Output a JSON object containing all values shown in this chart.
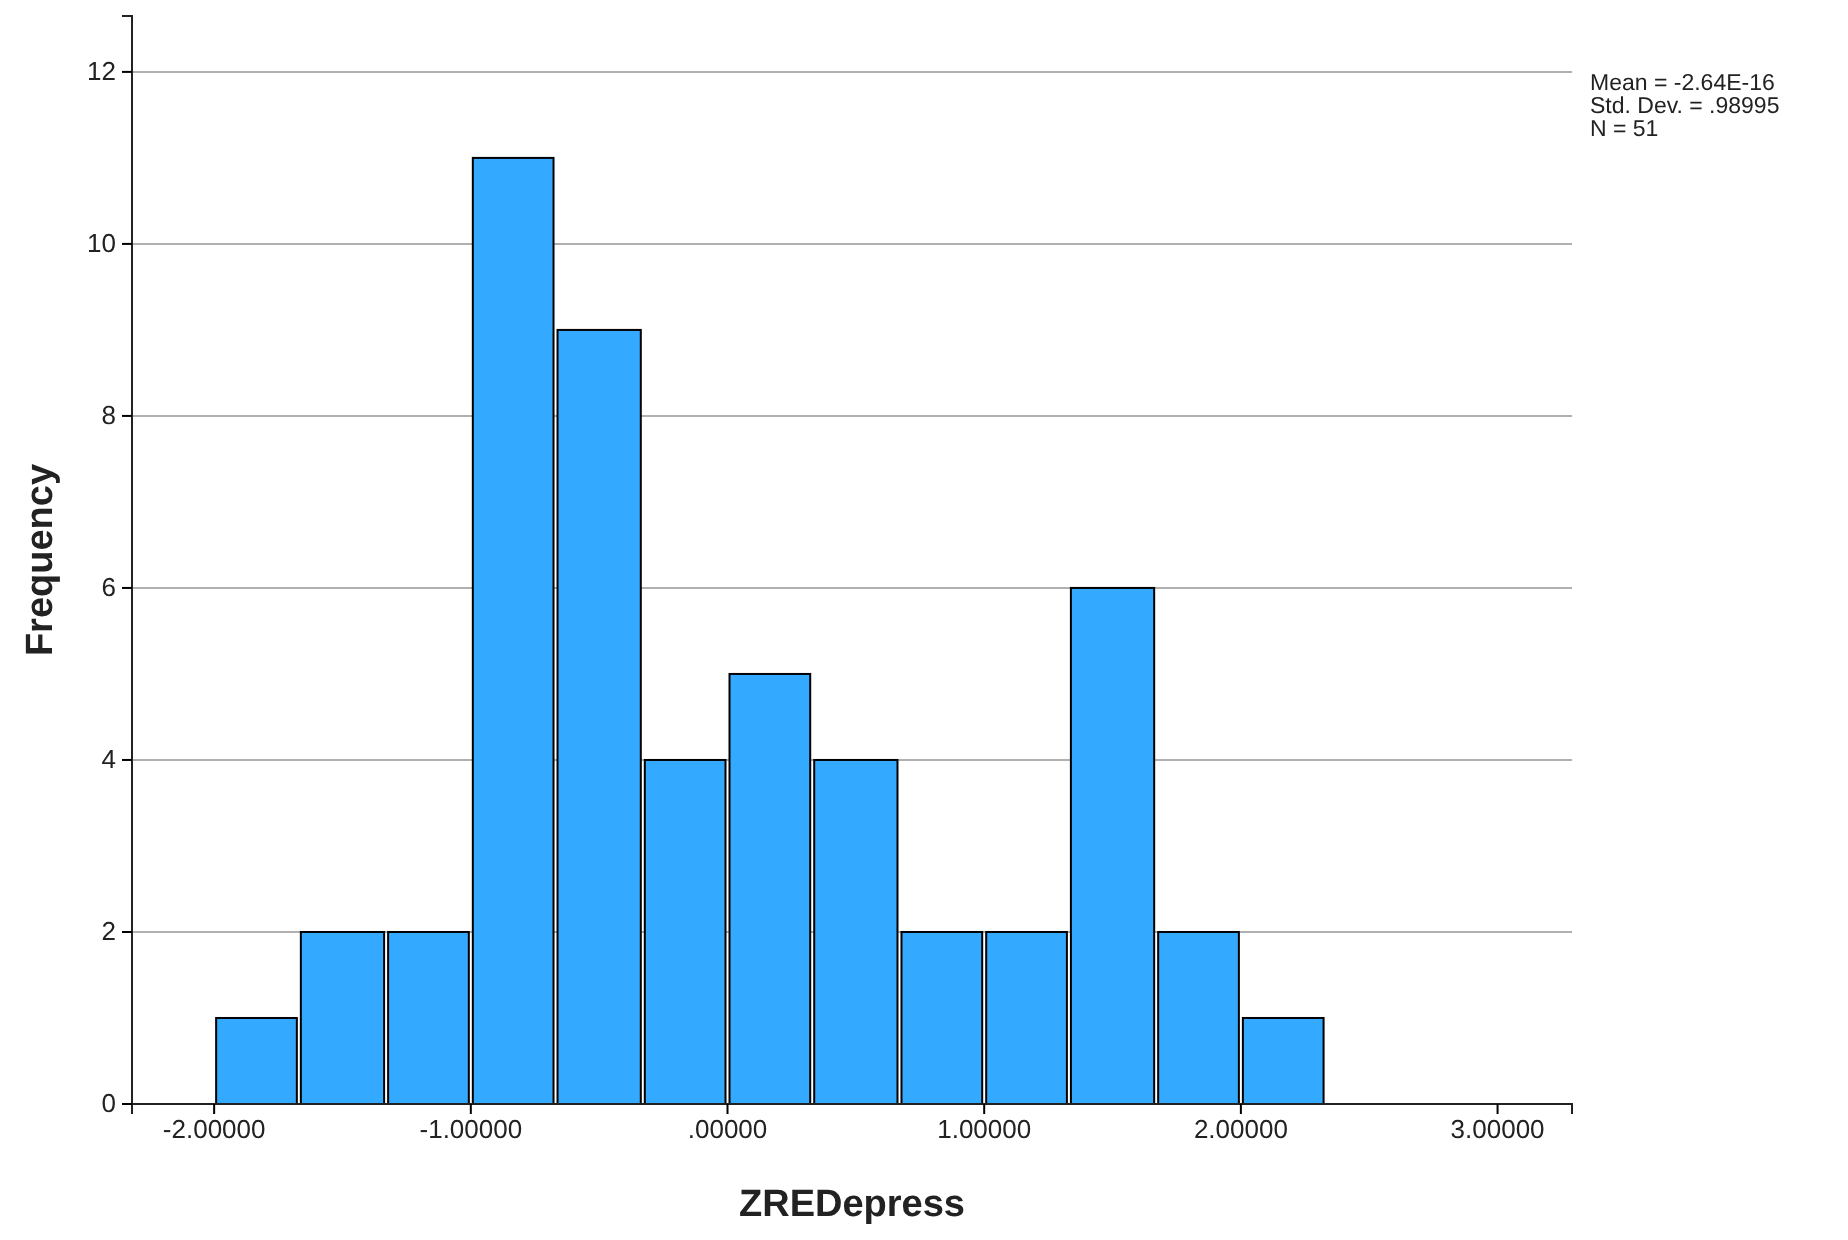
{
  "chart_data": {
    "type": "histogram",
    "xlabel": "ZREDepress",
    "ylabel": "Frequency",
    "bins": [
      -2,
      -1.67,
      -1.33,
      -1,
      -0.67,
      -0.33,
      0,
      0.33,
      0.67,
      1,
      1.33,
      1.67,
      2,
      2.33
    ],
    "values": [
      1,
      2,
      2,
      11,
      9,
      4,
      5,
      4,
      2,
      2,
      6,
      2,
      1
    ],
    "color": "#33aaff",
    "xlim": [
      -2.32,
      3.29
    ],
    "ylim": [
      0,
      12.65
    ],
    "xticks": [
      {
        "value": -2,
        "label": "-2.00000"
      },
      {
        "value": -1,
        "label": "-1.00000"
      },
      {
        "value": 0,
        "label": ".00000"
      },
      {
        "value": 1,
        "label": "1.00000"
      },
      {
        "value": 2,
        "label": "2.00000"
      },
      {
        "value": 3,
        "label": "3.00000"
      }
    ],
    "yticks": [
      0,
      2,
      4,
      6,
      8,
      10,
      12
    ],
    "grid": "y",
    "annotations": [
      "Mean = -2.64E-16",
      "Std. Dev. = .98995",
      "N = 51"
    ]
  }
}
